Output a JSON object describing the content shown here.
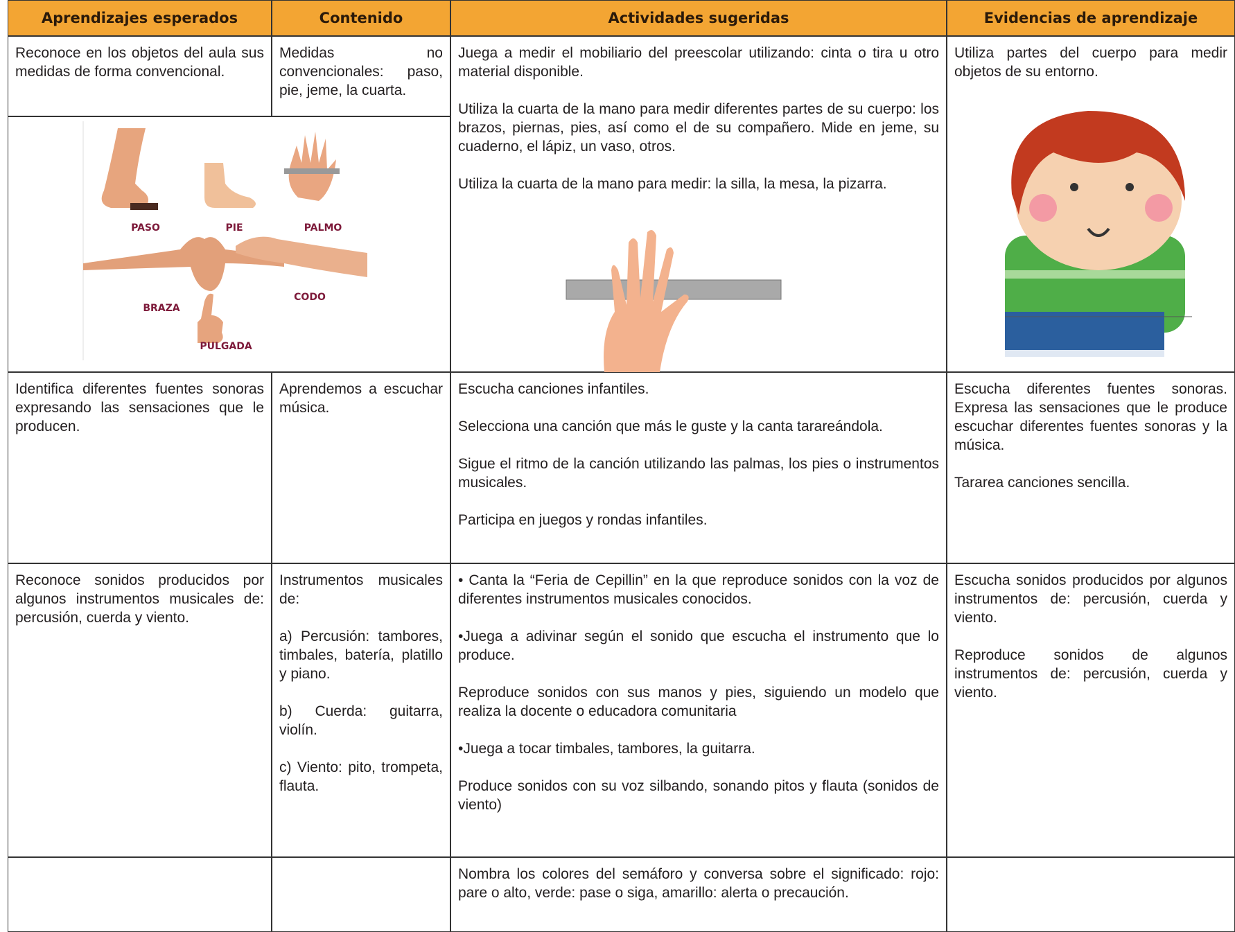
{
  "header": {
    "columns": [
      "Aprendizajes esperados",
      "Contenido",
      "Actividades sugeridas",
      "Evidencias de aprendizaje"
    ]
  },
  "table": {
    "rows": [
      {
        "cells": [
          [
            "Reconoce en los objetos del aula sus medidas de forma convencional."
          ],
          [
            "Medidas no convencionales: paso, pie, jeme, la cuarta."
          ],
          [
            "Juega a medir el mobiliario del preescolar utilizando: cinta o tira u otro material disponible.",
            "Utiliza la cuarta de la mano para medir diferentes partes de su cuerpo: los brazos, piernas, pies, así como el de su compañero. Mide en jeme, su cuaderno, el lápiz, un vaso, otros.",
            "Utiliza la cuarta de la mano para medir: la silla, la mesa, la pizarra."
          ],
          [
            "Utiliza partes del cuerpo para medir objetos de su entorno."
          ]
        ]
      },
      {
        "cells": [
          [
            "Identifica diferentes fuentes sonoras expresando las sensaciones que le producen."
          ],
          [
            "Aprendemos a escuchar música."
          ],
          [
            "Escucha canciones infantiles.",
            "Selecciona una canción que más le guste y la canta tarareándola.",
            "Sigue el ritmo de la canción utilizando las palmas, los pies o instrumentos musicales.",
            "Participa en juegos y rondas infantiles."
          ],
          [
            "Escucha diferentes fuentes sonoras. Expresa las sensaciones que le produce escuchar diferentes fuentes sonoras y la música.",
            "Tararea canciones sencilla."
          ]
        ]
      },
      {
        "cells": [
          [
            "Reconoce sonidos producidos por algunos instrumentos musicales de: percusión, cuerda y viento."
          ],
          [
            "Instrumentos musicales de:",
            "a) Percusión: tambores, timbales, batería, platillo y piano.",
            "b) Cuerda: guitarra, violín.",
            "c) Viento: pito, trompeta, flauta."
          ],
          [
            "• Canta la “Feria de Cepillin” en la que reproduce sonidos con la voz de diferentes instrumentos musicales conocidos.",
            "•Juega a adivinar según el sonido que escucha el instrumento que lo produce.",
            "Reproduce sonidos con sus manos y pies, siguiendo un modelo que realiza la docente o educadora comunitaria",
            "•Juega a tocar timbales, tambores, la guitarra.",
            "Produce sonidos con su voz silbando, sonando pitos y flauta (sonidos de viento)"
          ],
          [
            "Escucha sonidos producidos por algunos instrumentos de: percusión, cuerda y viento.",
            "Reproduce sonidos de algunos instrumentos de: percusión, cuerda y viento."
          ]
        ]
      },
      {
        "cells": [
          [],
          [],
          [
            "Nombra los colores del semáforo y conversa sobre el significado: rojo: pare o alto, verde: pase o siga, amarillo: alerta o precaución."
          ],
          []
        ]
      }
    ]
  },
  "figure": {
    "labels": [
      "PASO",
      "PIE",
      "PALMO",
      "BRAZA",
      "CODO",
      "PULGADA"
    ]
  }
}
